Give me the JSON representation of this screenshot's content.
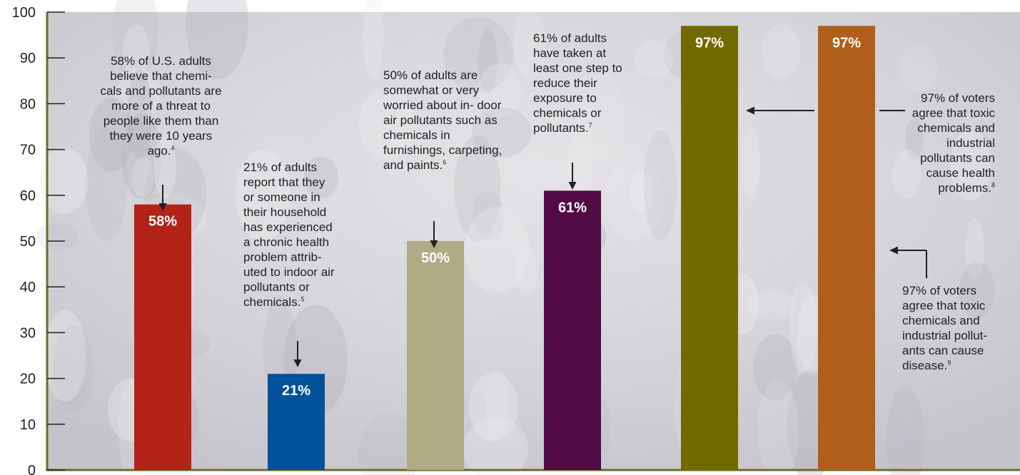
{
  "chart_data": {
    "type": "bar",
    "categories": [
      "",
      "",
      "",
      "",
      "",
      ""
    ],
    "values": [
      58,
      21,
      50,
      61,
      97,
      97
    ],
    "value_labels": [
      "58%",
      "21%",
      "50%",
      "61%",
      "97%",
      "97%"
    ],
    "bar_colors": [
      "#b22417",
      "#00529b",
      "#aeab85",
      "#520a45",
      "#706a00",
      "#b05e1b"
    ],
    "ylim": [
      0,
      100
    ],
    "yticks": [
      "0",
      "10",
      "20",
      "30",
      "40",
      "50",
      "60",
      "70",
      "80",
      "90",
      "100"
    ],
    "grid": false,
    "legend": "none",
    "title": "",
    "xlabel": "",
    "ylabel": "",
    "axis_color": "#706a30",
    "annotations": [
      {
        "text": "58% of U.S. adults believe that chemi- cals and pollutants are more of a threat to people like them than they were 10 years ago.",
        "note": "4"
      },
      {
        "text": "21% of adults report that they or someone in their household has experienced a chronic health problem attrib- uted to indoor air pollutants or chemicals.",
        "note": "5"
      },
      {
        "text": "50% of adults are somewhat or very worried about in- door air pollutants such as chemicals in furnishings, carpeting, and paints.",
        "note": "6"
      },
      {
        "text": "61% of adults have taken at least one step to reduce their exposure to chemicals or pollutants.",
        "note": "7"
      },
      {
        "text": "97% of voters agree that toxic chemicals and industrial pollutants can cause health problems.",
        "note": "8"
      },
      {
        "text": "97% of voters agree that toxic chemicals and industrial pollut- ants can cause disease.",
        "note": "9"
      }
    ]
  }
}
